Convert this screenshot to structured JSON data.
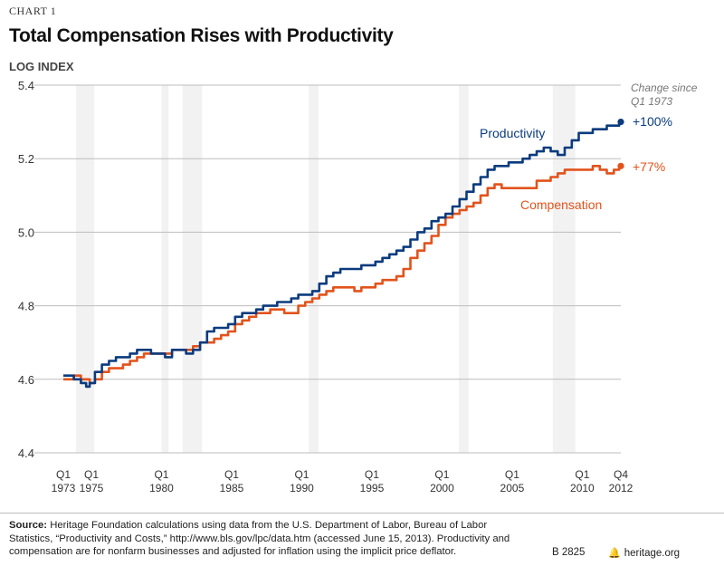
{
  "header": {
    "chart_label": "CHART 1",
    "title": "Total Compensation Rises with Productivity",
    "ylabel": "LOG INDEX"
  },
  "legend_note": [
    "Change since",
    "Q1 1973"
  ],
  "colors": {
    "productivity": "#0b3b7e",
    "compensation": "#e2531c",
    "band": "#f2f2f2"
  },
  "chart_data": {
    "type": "line",
    "title": "Total Compensation Rises with Productivity",
    "xlabel": "",
    "ylabel": "LOG INDEX",
    "xlim": [
      1973.0,
      2012.75
    ],
    "ylim": [
      4.4,
      5.4
    ],
    "yticks": [
      "4.4",
      "4.6",
      "4.8",
      "5.0",
      "5.2",
      "5.4"
    ],
    "xticks": [
      {
        "x": 1973.0,
        "line1": "Q1",
        "line2": "1973"
      },
      {
        "x": 1975.0,
        "line1": "Q1",
        "line2": "1975"
      },
      {
        "x": 1980.0,
        "line1": "Q1",
        "line2": "1980"
      },
      {
        "x": 1985.0,
        "line1": "Q1",
        "line2": "1985"
      },
      {
        "x": 1990.0,
        "line1": "Q1",
        "line2": "1990"
      },
      {
        "x": 1995.0,
        "line1": "Q1",
        "line2": "1995"
      },
      {
        "x": 2000.0,
        "line1": "Q1",
        "line2": "2000"
      },
      {
        "x": 2005.0,
        "line1": "Q1",
        "line2": "2005"
      },
      {
        "x": 2010.0,
        "line1": "Q1",
        "line2": "2010"
      },
      {
        "x": 2012.75,
        "line1": "Q4",
        "line2": "2012"
      }
    ],
    "grid": "horizontal",
    "shaded_bands": [
      [
        1973.9,
        1975.2
      ],
      [
        1980.0,
        1980.5
      ],
      [
        1981.5,
        1982.9
      ],
      [
        1990.5,
        1991.2
      ],
      [
        2001.2,
        2001.9
      ],
      [
        2007.9,
        2009.5
      ]
    ],
    "series": [
      {
        "name": "Productivity",
        "end_label": "+100%",
        "x": [
          1973.0,
          1973.5,
          1974.0,
          1974.5,
          1974.75,
          1975.0,
          1975.5,
          1976.0,
          1976.5,
          1977.0,
          1977.5,
          1978.0,
          1978.5,
          1979.0,
          1979.5,
          1980.0,
          1980.5,
          1981.0,
          1981.5,
          1982.0,
          1982.5,
          1983.0,
          1983.5,
          1984.0,
          1984.5,
          1985.0,
          1985.5,
          1986.0,
          1986.5,
          1987.0,
          1987.5,
          1988.0,
          1988.5,
          1989.0,
          1989.5,
          1990.0,
          1990.5,
          1991.0,
          1991.5,
          1992.0,
          1992.5,
          1993.0,
          1993.5,
          1994.0,
          1994.5,
          1995.0,
          1995.5,
          1996.0,
          1996.5,
          1997.0,
          1997.5,
          1998.0,
          1998.5,
          1999.0,
          1999.5,
          2000.0,
          2000.5,
          2001.0,
          2001.5,
          2002.0,
          2002.5,
          2003.0,
          2003.5,
          2004.0,
          2004.5,
          2005.0,
          2005.5,
          2006.0,
          2006.5,
          2007.0,
          2007.5,
          2008.0,
          2008.5,
          2009.0,
          2009.5,
          2010.0,
          2010.5,
          2011.0,
          2011.5,
          2012.0,
          2012.5,
          2012.75
        ],
        "values": [
          4.61,
          4.61,
          4.6,
          4.59,
          4.58,
          4.59,
          4.62,
          4.64,
          4.65,
          4.66,
          4.66,
          4.67,
          4.68,
          4.68,
          4.67,
          4.67,
          4.66,
          4.68,
          4.68,
          4.67,
          4.68,
          4.7,
          4.73,
          4.74,
          4.74,
          4.75,
          4.77,
          4.78,
          4.78,
          4.79,
          4.8,
          4.8,
          4.81,
          4.81,
          4.82,
          4.83,
          4.83,
          4.84,
          4.86,
          4.88,
          4.89,
          4.9,
          4.9,
          4.9,
          4.91,
          4.91,
          4.92,
          4.93,
          4.94,
          4.95,
          4.96,
          4.98,
          5.0,
          5.01,
          5.03,
          5.04,
          5.05,
          5.07,
          5.09,
          5.11,
          5.13,
          5.15,
          5.17,
          5.18,
          5.18,
          5.19,
          5.19,
          5.2,
          5.21,
          5.22,
          5.23,
          5.22,
          5.21,
          5.23,
          5.25,
          5.27,
          5.27,
          5.28,
          5.28,
          5.29,
          5.29,
          5.3
        ]
      },
      {
        "name": "Compensation",
        "end_label": "+77%",
        "x": [
          1973.0,
          1973.5,
          1974.0,
          1974.5,
          1974.75,
          1975.0,
          1975.5,
          1976.0,
          1976.5,
          1977.0,
          1977.5,
          1978.0,
          1978.5,
          1979.0,
          1979.5,
          1980.0,
          1980.5,
          1981.0,
          1981.5,
          1982.0,
          1982.5,
          1983.0,
          1983.5,
          1984.0,
          1984.5,
          1985.0,
          1985.5,
          1986.0,
          1986.5,
          1987.0,
          1987.5,
          1988.0,
          1988.5,
          1989.0,
          1989.5,
          1990.0,
          1990.5,
          1991.0,
          1991.5,
          1992.0,
          1992.5,
          1993.0,
          1993.5,
          1994.0,
          1994.5,
          1995.0,
          1995.5,
          1996.0,
          1996.5,
          1997.0,
          1997.5,
          1998.0,
          1998.5,
          1999.0,
          1999.5,
          2000.0,
          2000.5,
          2001.0,
          2001.5,
          2002.0,
          2002.5,
          2003.0,
          2003.5,
          2004.0,
          2004.5,
          2005.0,
          2005.5,
          2006.0,
          2006.5,
          2007.0,
          2007.5,
          2008.0,
          2008.5,
          2009.0,
          2009.5,
          2010.0,
          2010.5,
          2011.0,
          2011.5,
          2012.0,
          2012.5,
          2012.75
        ],
        "values": [
          4.6,
          4.6,
          4.61,
          4.6,
          4.6,
          4.59,
          4.6,
          4.62,
          4.63,
          4.63,
          4.64,
          4.65,
          4.66,
          4.67,
          4.67,
          4.67,
          4.67,
          4.68,
          4.68,
          4.68,
          4.69,
          4.7,
          4.7,
          4.71,
          4.72,
          4.73,
          4.75,
          4.76,
          4.77,
          4.78,
          4.78,
          4.79,
          4.79,
          4.78,
          4.78,
          4.8,
          4.81,
          4.82,
          4.83,
          4.84,
          4.85,
          4.85,
          4.85,
          4.84,
          4.85,
          4.85,
          4.86,
          4.87,
          4.87,
          4.88,
          4.9,
          4.93,
          4.95,
          4.97,
          4.99,
          5.02,
          5.04,
          5.05,
          5.06,
          5.07,
          5.08,
          5.1,
          5.12,
          5.13,
          5.12,
          5.12,
          5.12,
          5.12,
          5.12,
          5.14,
          5.14,
          5.15,
          5.16,
          5.17,
          5.17,
          5.17,
          5.17,
          5.18,
          5.17,
          5.16,
          5.17,
          5.18
        ]
      }
    ]
  },
  "footer": {
    "source_label": "Source:",
    "source_text": " Heritage Foundation calculations using data from the U.S. Department of Labor, Bureau of Labor Statistics, “Productivity and Costs,” http://www.bls.gov/lpc/data.htm (accessed June 15, 2013). Productivity and compensation are for nonfarm businesses and adjusted for inflation using the implicit price deflator.",
    "bulletin_number": "B 2825",
    "site": "heritage.org"
  }
}
